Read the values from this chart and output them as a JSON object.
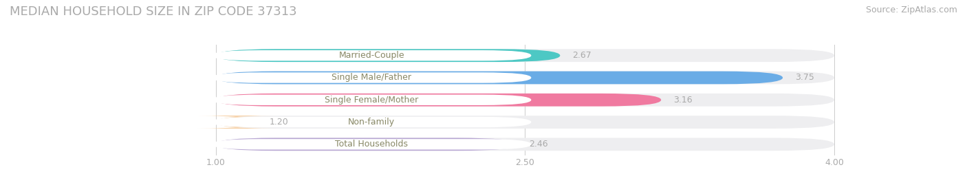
{
  "title": "MEDIAN HOUSEHOLD SIZE IN ZIP CODE 37313",
  "source": "Source: ZipAtlas.com",
  "categories": [
    "Married-Couple",
    "Single Male/Father",
    "Single Female/Mother",
    "Non-family",
    "Total Households"
  ],
  "values": [
    2.67,
    3.75,
    3.16,
    1.2,
    2.46
  ],
  "bar_colors": [
    "#4DC8C4",
    "#6AACE6",
    "#F07AA0",
    "#F5C896",
    "#B9A8D4"
  ],
  "bar_bg_color": "#EEEEF0",
  "xlim_min": 0.0,
  "xlim_max": 4.55,
  "data_min": 1.0,
  "data_max": 4.0,
  "xticks": [
    1.0,
    2.5,
    4.0
  ],
  "xtick_labels": [
    "1.00",
    "2.50",
    "4.00"
  ],
  "label_text_color": "#888866",
  "title_color": "#AAAAAA",
  "source_color": "#AAAAAA",
  "background_color": "#FFFFFF",
  "bar_height": 0.58,
  "label_pill_color": "#FFFFFF",
  "title_fontsize": 13,
  "label_fontsize": 9,
  "value_fontsize": 9,
  "tick_fontsize": 9,
  "source_fontsize": 9
}
